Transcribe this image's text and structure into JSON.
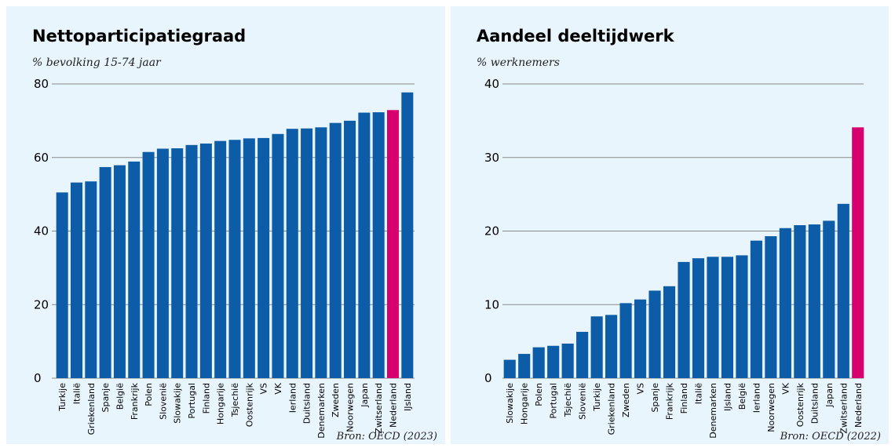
{
  "chart_data": [
    {
      "type": "bar",
      "title": "Nettoparticipatiegraad",
      "subtitle": "% bevolking 15-74 jaar",
      "source": "Bron: OECD (2023)",
      "ylim": [
        0,
        80
      ],
      "yticks": [
        0,
        20,
        40,
        60,
        80
      ],
      "grid": true,
      "highlight": "Nederland",
      "colors": {
        "bar": "#0c5ca8",
        "highlight": "#d6006f"
      },
      "categories": [
        "Turkije",
        "Italië",
        "Griekenland",
        "Spanje",
        "België",
        "Frankrijk",
        "Polen",
        "Slovenië",
        "Slowakije",
        "Portugal",
        "Finland",
        "Hongarije",
        "Tsjechië",
        "Oostenrijk",
        "VS",
        "VK",
        "Ierland",
        "Duitsland",
        "Denemarken",
        "Zweden",
        "Noorwegen",
        "Japan",
        "Zwitserland",
        "Nederland",
        "IJsland"
      ],
      "values": [
        50.5,
        53.2,
        53.5,
        57.4,
        57.9,
        58.9,
        61.5,
        62.4,
        62.5,
        63.4,
        63.8,
        64.5,
        64.8,
        65.2,
        65.3,
        66.4,
        67.8,
        67.9,
        68.2,
        69.4,
        70.0,
        72.2,
        72.3,
        72.9,
        77.7
      ]
    },
    {
      "type": "bar",
      "title": "Aandeel deeltijdwerk",
      "subtitle": "% werknemers",
      "source": "Bron: OECD (2022)",
      "ylim": [
        0,
        40
      ],
      "yticks": [
        0,
        10,
        20,
        30,
        40
      ],
      "grid": true,
      "highlight": "Nederland",
      "colors": {
        "bar": "#0c5ca8",
        "highlight": "#d6006f"
      },
      "categories": [
        "Slowakije",
        "Hongarije",
        "Polen",
        "Portugal",
        "Tsjechië",
        "Slovenië",
        "Turkije",
        "Griekenland",
        "Zweden",
        "VS",
        "Spanje",
        "Frankrijk",
        "Finland",
        "Italië",
        "Denemarken",
        "IJsland",
        "België",
        "Ierland",
        "Noorwegen",
        "VK",
        "Oostenrijk",
        "Duitsland",
        "Japan",
        "Zwitserland",
        "Nederland"
      ],
      "values": [
        2.5,
        3.3,
        4.2,
        4.4,
        4.7,
        6.3,
        8.4,
        8.6,
        10.2,
        10.7,
        11.9,
        12.5,
        15.8,
        16.3,
        16.5,
        16.5,
        16.7,
        18.7,
        19.3,
        20.4,
        20.8,
        20.9,
        21.4,
        23.7,
        34.1
      ]
    }
  ]
}
